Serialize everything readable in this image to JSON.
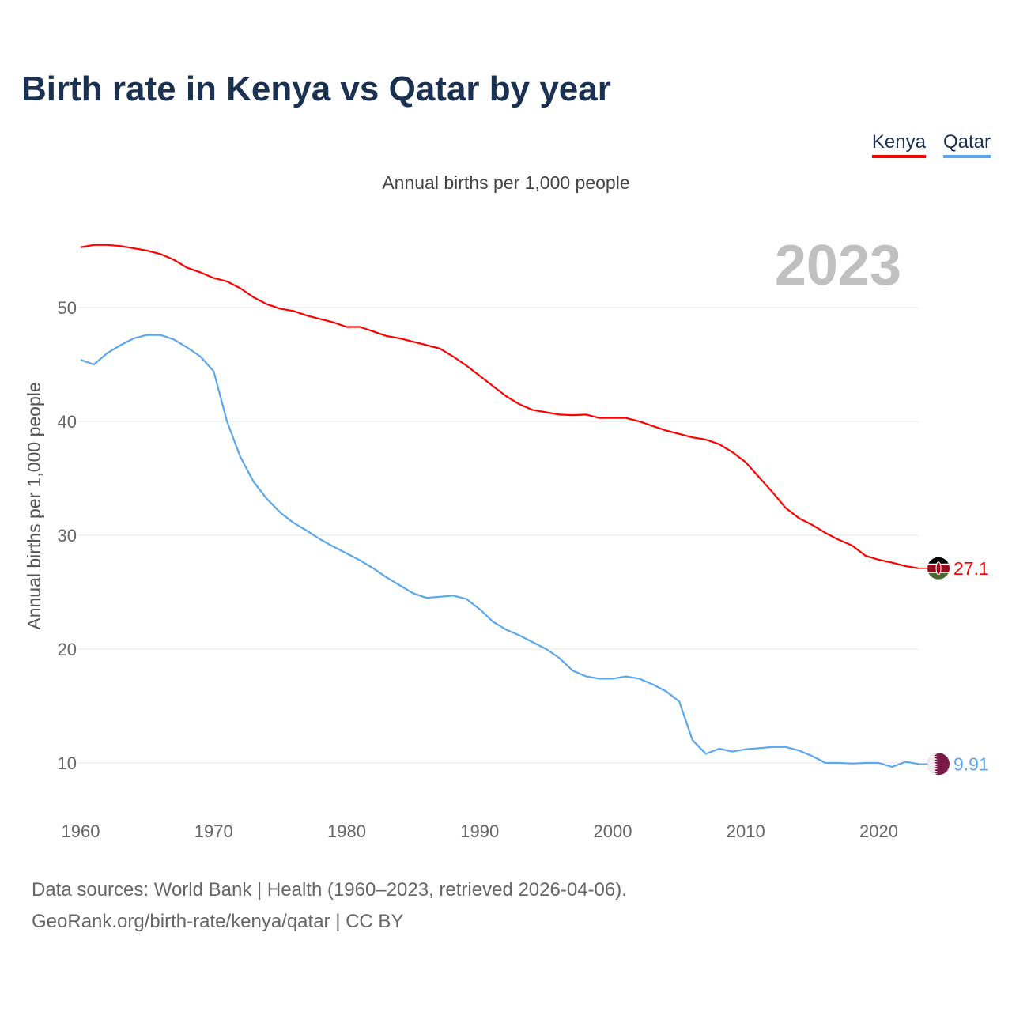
{
  "title": "Birth rate in Kenya vs Qatar by year",
  "subtitle": "Annual births per 1,000 people",
  "year_watermark": "2023",
  "source_line1": "Data sources: World Bank | Health (1960–2023, retrieved 2026-04-06).",
  "source_line2": "GeoRank.org/birth-rate/kenya/qatar | CC BY",
  "chart_data": {
    "type": "line",
    "title": "Birth rate in Kenya vs Qatar by year",
    "xlabel": "",
    "ylabel": "Annual births per 1,000 people",
    "xlim": [
      1960,
      2023
    ],
    "ylim": [
      5,
      60
    ],
    "x_ticks": [
      1960,
      1970,
      1980,
      1990,
      2000,
      2010,
      2020
    ],
    "y_ticks": [
      10,
      20,
      30,
      40,
      50
    ],
    "grid": true,
    "legend_placement": "top-right",
    "x_start": 1960,
    "series": [
      {
        "name": "Kenya",
        "color": "#ff0000",
        "end_label": "27.1",
        "icon": "kenya-flag-icon",
        "values": [
          55.3,
          55.5,
          55.5,
          55.4,
          55.2,
          55.0,
          54.7,
          54.2,
          53.5,
          53.1,
          52.6,
          52.3,
          51.7,
          50.9,
          50.3,
          49.9,
          49.7,
          49.3,
          49.0,
          48.7,
          48.3,
          48.3,
          47.9,
          47.5,
          47.3,
          47.0,
          46.7,
          46.4,
          45.7,
          44.9,
          44.0,
          43.1,
          42.2,
          41.5,
          41.0,
          40.8,
          40.6,
          40.55,
          40.6,
          40.3,
          40.3,
          40.3,
          40.0,
          39.6,
          39.2,
          38.9,
          38.6,
          38.4,
          38.0,
          37.3,
          36.4,
          35.1,
          33.8,
          32.4,
          31.5,
          30.9,
          30.2,
          29.6,
          29.1,
          28.2,
          27.85,
          27.6,
          27.3,
          27.1
        ]
      },
      {
        "name": "Qatar",
        "color": "#5aa7ee",
        "end_label": "9.91",
        "icon": "qatar-flag-icon",
        "values": [
          45.4,
          45.0,
          46.0,
          46.7,
          47.3,
          47.6,
          47.6,
          47.2,
          46.5,
          45.7,
          44.4,
          40.0,
          36.9,
          34.7,
          33.2,
          32.0,
          31.1,
          30.4,
          29.65,
          29.0,
          28.4,
          27.8,
          27.1,
          26.3,
          25.6,
          24.9,
          24.5,
          24.6,
          24.7,
          24.4,
          23.5,
          22.4,
          21.7,
          21.2,
          20.6,
          20.0,
          19.2,
          18.1,
          17.6,
          17.4,
          17.4,
          17.6,
          17.4,
          16.9,
          16.3,
          15.4,
          12.0,
          10.8,
          11.25,
          11.0,
          11.2,
          11.3,
          11.4,
          11.4,
          11.1,
          10.6,
          10.0,
          10.0,
          9.95,
          10.0,
          10.0,
          9.65,
          10.1,
          9.91
        ]
      }
    ]
  }
}
